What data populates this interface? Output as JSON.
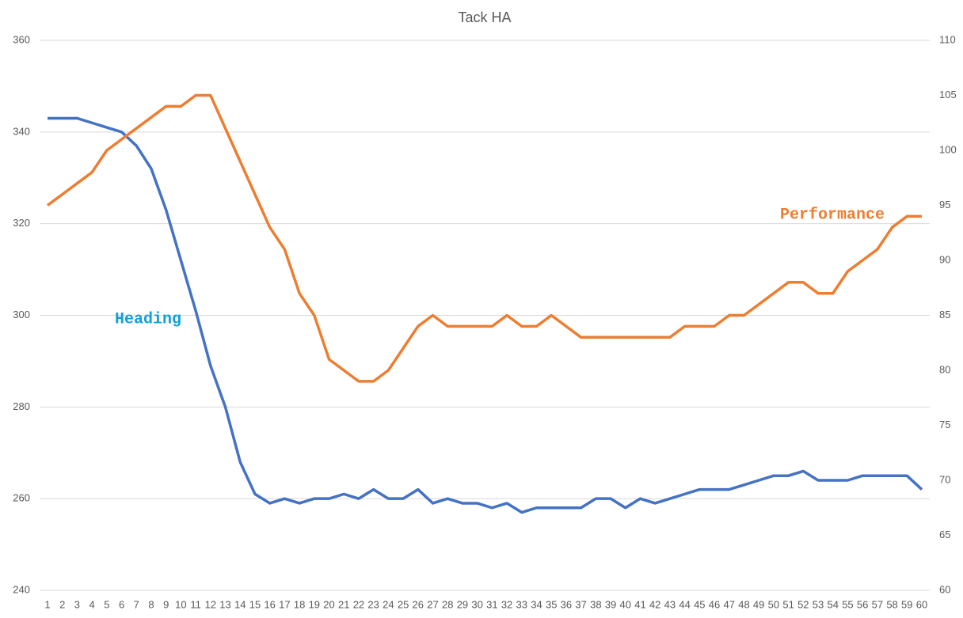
{
  "chart_data": {
    "type": "line",
    "title": "Tack HA",
    "categories": [
      "1",
      "2",
      "3",
      "4",
      "5",
      "6",
      "7",
      "8",
      "9",
      "10",
      "11",
      "12",
      "13",
      "14",
      "15",
      "16",
      "17",
      "18",
      "19",
      "20",
      "21",
      "22",
      "23",
      "24",
      "25",
      "26",
      "27",
      "28",
      "29",
      "30",
      "31",
      "32",
      "33",
      "34",
      "35",
      "36",
      "37",
      "38",
      "39",
      "40",
      "41",
      "42",
      "43",
      "44",
      "45",
      "46",
      "47",
      "48",
      "49",
      "50",
      "51",
      "52",
      "53",
      "54",
      "55",
      "56",
      "57",
      "58",
      "59",
      "60"
    ],
    "series": [
      {
        "name": "Heading",
        "color": "#4472c4",
        "values": [
          343,
          343,
          343,
          342,
          341,
          340,
          337,
          332,
          323,
          312,
          301,
          289,
          280,
          268,
          261,
          259,
          260,
          259,
          260,
          260,
          261,
          260,
          262,
          260,
          260,
          262,
          259,
          260,
          259,
          259,
          258,
          259,
          257,
          258,
          258,
          258,
          258,
          260,
          260,
          258,
          260,
          259,
          260,
          261,
          262,
          262,
          262,
          263,
          264,
          265,
          265,
          266,
          264,
          264,
          264,
          265,
          265,
          265,
          265,
          262
        ]
      },
      {
        "name": "Performance",
        "color": "#ed7d31",
        "axis": "y2",
        "values": [
          95,
          96,
          97,
          98,
          100,
          101,
          102,
          103,
          104,
          104,
          105,
          105,
          102,
          99,
          96,
          93,
          91,
          87,
          85,
          81,
          80,
          79,
          79,
          80,
          82,
          84,
          85,
          84,
          84,
          84,
          84,
          85,
          84,
          84,
          85,
          84,
          83,
          83,
          83,
          83,
          83,
          83,
          83,
          84,
          84,
          84,
          85,
          85,
          86,
          87,
          88,
          88,
          87,
          87,
          89,
          90,
          91,
          93,
          94,
          94
        ]
      }
    ],
    "ylim": [
      240,
      360
    ],
    "yticks": [
      240,
      260,
      280,
      300,
      320,
      340,
      360
    ],
    "y2lim": [
      60,
      110
    ],
    "y2ticks": [
      60,
      65,
      70,
      75,
      80,
      85,
      90,
      95,
      100,
      105,
      110
    ],
    "grid": true
  }
}
